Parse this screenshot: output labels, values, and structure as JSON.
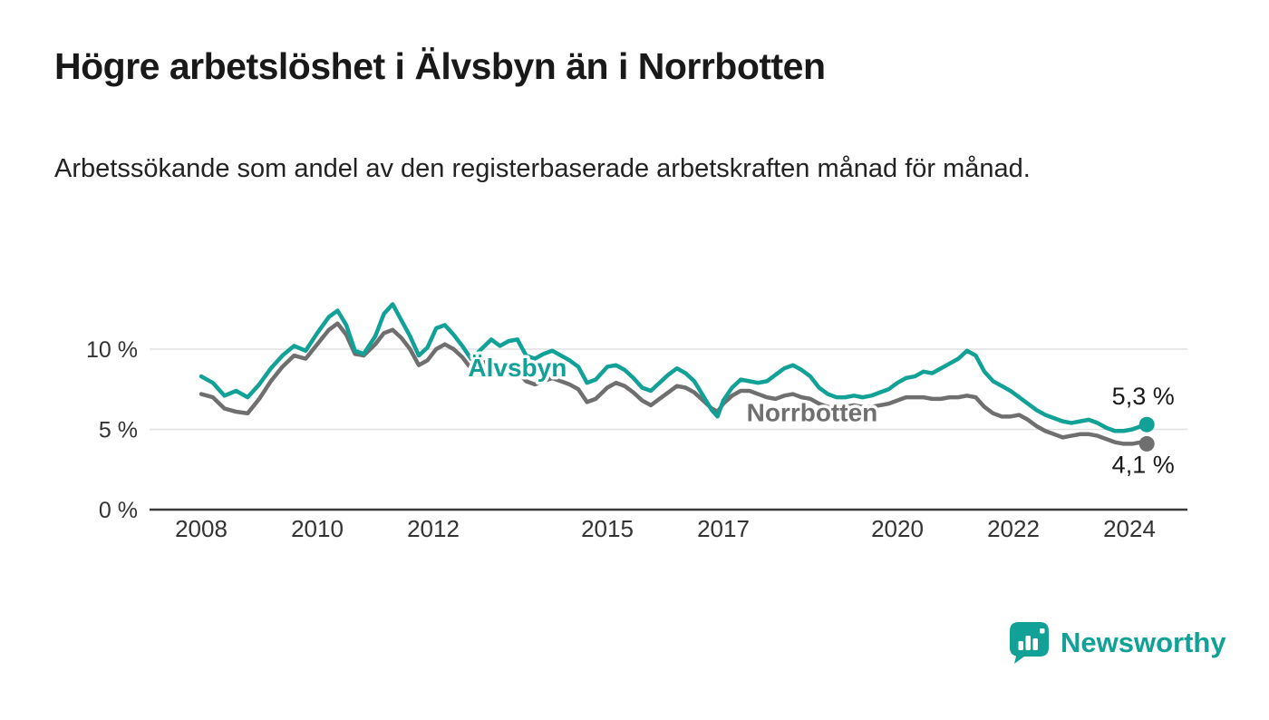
{
  "footer": {
    "brand": "Newsworthy"
  },
  "colors": {
    "accent_teal": "#12a197",
    "series_gray": "#6f6f6f",
    "grid": "#e0e0e0",
    "axis": "#3a3a3a",
    "text_dark": "#1a1a1a"
  },
  "chart_data": {
    "type": "line",
    "title": "Högre arbetslöshet i Älvsbyn än i Norrbotten",
    "subtitle": "Arbetssökande som andel av den registerbaserade arbetskraften månad för månad.",
    "unit": "%",
    "grid": "horizontal",
    "legend_position": "inline-labels",
    "x_range": [
      2007.8,
      2025.1
    ],
    "y_range": [
      0,
      13.5
    ],
    "y_ticks": [
      {
        "value": 0,
        "label": "0 %"
      },
      {
        "value": 5,
        "label": "5 %"
      },
      {
        "value": 10,
        "label": "10 %"
      }
    ],
    "x_ticks": [
      2008,
      2010,
      2012,
      2015,
      2017,
      2020,
      2022,
      2024
    ],
    "series_labels": [
      {
        "text": "Älvsbyn",
        "year": 2012.6,
        "value": 8.3
      },
      {
        "text": "Norrbotten",
        "year": 2017.4,
        "value": 5.5
      }
    ],
    "series": [
      {
        "name": "Älvsbyn",
        "color": "#12a197",
        "end_label": "5,3 %",
        "end_value": 5.3,
        "points": [
          [
            2008.0,
            8.3
          ],
          [
            2008.2,
            7.9
          ],
          [
            2008.4,
            7.1
          ],
          [
            2008.6,
            7.4
          ],
          [
            2008.8,
            7.0
          ],
          [
            2009.0,
            7.8
          ],
          [
            2009.2,
            8.8
          ],
          [
            2009.4,
            9.6
          ],
          [
            2009.6,
            10.2
          ],
          [
            2009.8,
            9.9
          ],
          [
            2010.0,
            11.0
          ],
          [
            2010.2,
            12.0
          ],
          [
            2010.35,
            12.4
          ],
          [
            2010.5,
            11.5
          ],
          [
            2010.65,
            9.9
          ],
          [
            2010.8,
            9.7
          ],
          [
            2011.0,
            10.8
          ],
          [
            2011.15,
            12.2
          ],
          [
            2011.3,
            12.8
          ],
          [
            2011.45,
            11.8
          ],
          [
            2011.6,
            10.8
          ],
          [
            2011.75,
            9.6
          ],
          [
            2011.9,
            10.1
          ],
          [
            2012.05,
            11.3
          ],
          [
            2012.2,
            11.5
          ],
          [
            2012.35,
            10.9
          ],
          [
            2012.5,
            10.2
          ],
          [
            2012.65,
            9.4
          ],
          [
            2012.8,
            9.9
          ],
          [
            2013.0,
            10.6
          ],
          [
            2013.15,
            10.2
          ],
          [
            2013.3,
            10.5
          ],
          [
            2013.45,
            10.6
          ],
          [
            2013.6,
            9.6
          ],
          [
            2013.75,
            9.4
          ],
          [
            2013.9,
            9.7
          ],
          [
            2014.05,
            9.9
          ],
          [
            2014.2,
            9.6
          ],
          [
            2014.35,
            9.3
          ],
          [
            2014.5,
            8.9
          ],
          [
            2014.65,
            7.9
          ],
          [
            2014.8,
            8.1
          ],
          [
            2015.0,
            8.9
          ],
          [
            2015.15,
            9.0
          ],
          [
            2015.3,
            8.7
          ],
          [
            2015.45,
            8.2
          ],
          [
            2015.6,
            7.6
          ],
          [
            2015.75,
            7.4
          ],
          [
            2015.9,
            7.9
          ],
          [
            2016.05,
            8.4
          ],
          [
            2016.2,
            8.8
          ],
          [
            2016.35,
            8.5
          ],
          [
            2016.5,
            8.0
          ],
          [
            2016.65,
            7.1
          ],
          [
            2016.8,
            6.2
          ],
          [
            2016.9,
            5.8
          ],
          [
            2017.0,
            6.8
          ],
          [
            2017.15,
            7.6
          ],
          [
            2017.3,
            8.1
          ],
          [
            2017.45,
            8.0
          ],
          [
            2017.6,
            7.9
          ],
          [
            2017.75,
            8.0
          ],
          [
            2017.9,
            8.4
          ],
          [
            2018.05,
            8.8
          ],
          [
            2018.2,
            9.0
          ],
          [
            2018.35,
            8.7
          ],
          [
            2018.5,
            8.3
          ],
          [
            2018.65,
            7.6
          ],
          [
            2018.8,
            7.2
          ],
          [
            2018.95,
            7.0
          ],
          [
            2019.1,
            7.0
          ],
          [
            2019.25,
            7.1
          ],
          [
            2019.4,
            7.0
          ],
          [
            2019.55,
            7.1
          ],
          [
            2019.7,
            7.3
          ],
          [
            2019.85,
            7.5
          ],
          [
            2020.0,
            7.9
          ],
          [
            2020.15,
            8.2
          ],
          [
            2020.3,
            8.3
          ],
          [
            2020.45,
            8.6
          ],
          [
            2020.6,
            8.5
          ],
          [
            2020.75,
            8.8
          ],
          [
            2020.9,
            9.1
          ],
          [
            2021.05,
            9.4
          ],
          [
            2021.2,
            9.9
          ],
          [
            2021.35,
            9.6
          ],
          [
            2021.5,
            8.6
          ],
          [
            2021.65,
            8.0
          ],
          [
            2021.8,
            7.7
          ],
          [
            2021.95,
            7.4
          ],
          [
            2022.1,
            7.0
          ],
          [
            2022.25,
            6.6
          ],
          [
            2022.4,
            6.2
          ],
          [
            2022.55,
            5.9
          ],
          [
            2022.7,
            5.7
          ],
          [
            2022.85,
            5.5
          ],
          [
            2023.0,
            5.4
          ],
          [
            2023.15,
            5.5
          ],
          [
            2023.3,
            5.6
          ],
          [
            2023.45,
            5.4
          ],
          [
            2023.6,
            5.1
          ],
          [
            2023.75,
            4.9
          ],
          [
            2023.9,
            4.9
          ],
          [
            2024.05,
            5.0
          ],
          [
            2024.2,
            5.2
          ],
          [
            2024.3,
            5.3
          ]
        ]
      },
      {
        "name": "Norrbotten",
        "color": "#6f6f6f",
        "end_label": "4,1 %",
        "end_value": 4.1,
        "points": [
          [
            2008.0,
            7.2
          ],
          [
            2008.2,
            7.0
          ],
          [
            2008.4,
            6.3
          ],
          [
            2008.6,
            6.1
          ],
          [
            2008.8,
            6.0
          ],
          [
            2009.0,
            6.9
          ],
          [
            2009.2,
            8.0
          ],
          [
            2009.4,
            8.9
          ],
          [
            2009.6,
            9.6
          ],
          [
            2009.8,
            9.4
          ],
          [
            2010.0,
            10.3
          ],
          [
            2010.2,
            11.2
          ],
          [
            2010.35,
            11.6
          ],
          [
            2010.5,
            10.9
          ],
          [
            2010.65,
            9.7
          ],
          [
            2010.8,
            9.6
          ],
          [
            2011.0,
            10.3
          ],
          [
            2011.15,
            11.0
          ],
          [
            2011.3,
            11.2
          ],
          [
            2011.45,
            10.7
          ],
          [
            2011.6,
            10.0
          ],
          [
            2011.75,
            9.0
          ],
          [
            2011.9,
            9.3
          ],
          [
            2012.05,
            10.0
          ],
          [
            2012.2,
            10.3
          ],
          [
            2012.35,
            10.0
          ],
          [
            2012.5,
            9.5
          ],
          [
            2012.65,
            8.8
          ],
          [
            2012.8,
            9.0
          ],
          [
            2013.0,
            9.4
          ],
          [
            2013.15,
            8.9
          ],
          [
            2013.3,
            8.7
          ],
          [
            2013.45,
            8.6
          ],
          [
            2013.6,
            8.0
          ],
          [
            2013.75,
            7.8
          ],
          [
            2013.9,
            8.0
          ],
          [
            2014.05,
            8.2
          ],
          [
            2014.2,
            8.0
          ],
          [
            2014.35,
            7.8
          ],
          [
            2014.5,
            7.5
          ],
          [
            2014.65,
            6.7
          ],
          [
            2014.8,
            6.9
          ],
          [
            2015.0,
            7.6
          ],
          [
            2015.15,
            7.9
          ],
          [
            2015.3,
            7.7
          ],
          [
            2015.45,
            7.3
          ],
          [
            2015.6,
            6.8
          ],
          [
            2015.75,
            6.5
          ],
          [
            2015.9,
            6.9
          ],
          [
            2016.05,
            7.3
          ],
          [
            2016.2,
            7.7
          ],
          [
            2016.35,
            7.6
          ],
          [
            2016.5,
            7.3
          ],
          [
            2016.65,
            6.8
          ],
          [
            2016.8,
            6.3
          ],
          [
            2016.9,
            6.1
          ],
          [
            2017.0,
            6.6
          ],
          [
            2017.15,
            7.1
          ],
          [
            2017.3,
            7.4
          ],
          [
            2017.45,
            7.4
          ],
          [
            2017.6,
            7.2
          ],
          [
            2017.75,
            7.0
          ],
          [
            2017.9,
            6.9
          ],
          [
            2018.05,
            7.1
          ],
          [
            2018.2,
            7.2
          ],
          [
            2018.35,
            7.0
          ],
          [
            2018.5,
            6.9
          ],
          [
            2018.65,
            6.6
          ],
          [
            2018.8,
            6.4
          ],
          [
            2018.95,
            6.3
          ],
          [
            2019.1,
            6.4
          ],
          [
            2019.25,
            6.5
          ],
          [
            2019.4,
            6.4
          ],
          [
            2019.55,
            6.4
          ],
          [
            2019.7,
            6.5
          ],
          [
            2019.85,
            6.6
          ],
          [
            2020.0,
            6.8
          ],
          [
            2020.15,
            7.0
          ],
          [
            2020.3,
            7.0
          ],
          [
            2020.45,
            7.0
          ],
          [
            2020.6,
            6.9
          ],
          [
            2020.75,
            6.9
          ],
          [
            2020.9,
            7.0
          ],
          [
            2021.05,
            7.0
          ],
          [
            2021.2,
            7.1
          ],
          [
            2021.35,
            7.0
          ],
          [
            2021.5,
            6.4
          ],
          [
            2021.65,
            6.0
          ],
          [
            2021.8,
            5.8
          ],
          [
            2021.95,
            5.8
          ],
          [
            2022.1,
            5.9
          ],
          [
            2022.25,
            5.6
          ],
          [
            2022.4,
            5.2
          ],
          [
            2022.55,
            4.9
          ],
          [
            2022.7,
            4.7
          ],
          [
            2022.85,
            4.5
          ],
          [
            2023.0,
            4.6
          ],
          [
            2023.15,
            4.7
          ],
          [
            2023.3,
            4.7
          ],
          [
            2023.45,
            4.6
          ],
          [
            2023.6,
            4.4
          ],
          [
            2023.75,
            4.2
          ],
          [
            2023.9,
            4.1
          ],
          [
            2024.05,
            4.1
          ],
          [
            2024.2,
            4.2
          ],
          [
            2024.3,
            4.1
          ]
        ]
      }
    ]
  }
}
